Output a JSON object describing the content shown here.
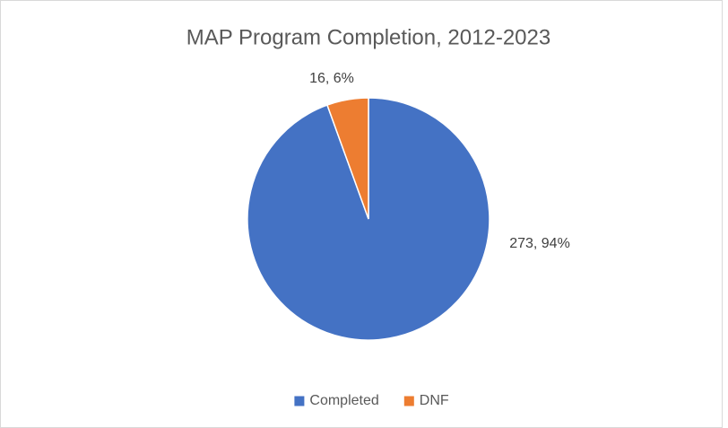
{
  "chart_data": {
    "type": "pie",
    "title": "MAP Program Completion, 2012-2023",
    "categories": [
      "Completed",
      "DNF"
    ],
    "values": [
      273,
      16
    ],
    "value_labels": [
      "273, 94%",
      "16, 6%"
    ],
    "colors": [
      "#4472c4",
      "#ed7d31"
    ],
    "legend": "bottom"
  }
}
